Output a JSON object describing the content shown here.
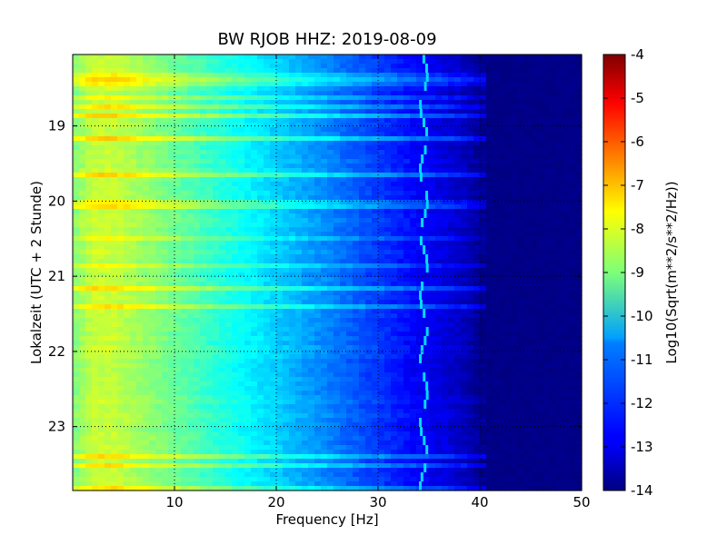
{
  "chart_data": {
    "type": "heatmap",
    "title": "BW RJOB HHZ: 2019-08-09",
    "xlabel": "Frequency [Hz]",
    "ylabel": "Lokalzeit (UTC + 2 Stunde)",
    "colorbar_label": "Log10(Sqrt(m**2/s**2/Hz))",
    "colormap": "jet",
    "xlim": [
      0,
      50
    ],
    "ylim": [
      18.05,
      23.85
    ],
    "y_inverted": true,
    "clim": [
      -14,
      -4
    ],
    "x_ticks": [
      "10",
      "20",
      "30",
      "40",
      "50"
    ],
    "x_tick_values": [
      10,
      20,
      30,
      40,
      50
    ],
    "y_ticks": [
      "19",
      "20",
      "21",
      "22",
      "23"
    ],
    "y_tick_values": [
      19,
      20,
      21,
      22,
      23
    ],
    "colorbar_ticks": [
      "-4",
      "-5",
      "-6",
      "-7",
      "-8",
      "-9",
      "-10",
      "-11",
      "-12",
      "-13",
      "-14"
    ],
    "colorbar_tick_values": [
      -4,
      -5,
      -6,
      -7,
      -8,
      -9,
      -10,
      -11,
      -12,
      -13,
      -14
    ],
    "grid": true,
    "spectrum_profile": {
      "frequency_hz": [
        0,
        2,
        4,
        6,
        8,
        10,
        12,
        14,
        16,
        18,
        20,
        22,
        24,
        26,
        28,
        30,
        32,
        34,
        36,
        38,
        40,
        42,
        50
      ],
      "log10_psd": [
        -9.0,
        -8.3,
        -8.3,
        -8.6,
        -8.9,
        -9.2,
        -9.5,
        -9.8,
        -10.1,
        -10.4,
        -10.7,
        -11.0,
        -11.3,
        -11.6,
        -11.9,
        -12.2,
        -12.5,
        -12.8,
        -13.0,
        -13.3,
        -13.8,
        -14.0,
        -14.0
      ]
    },
    "spectral_line_hz": 34.5
  }
}
